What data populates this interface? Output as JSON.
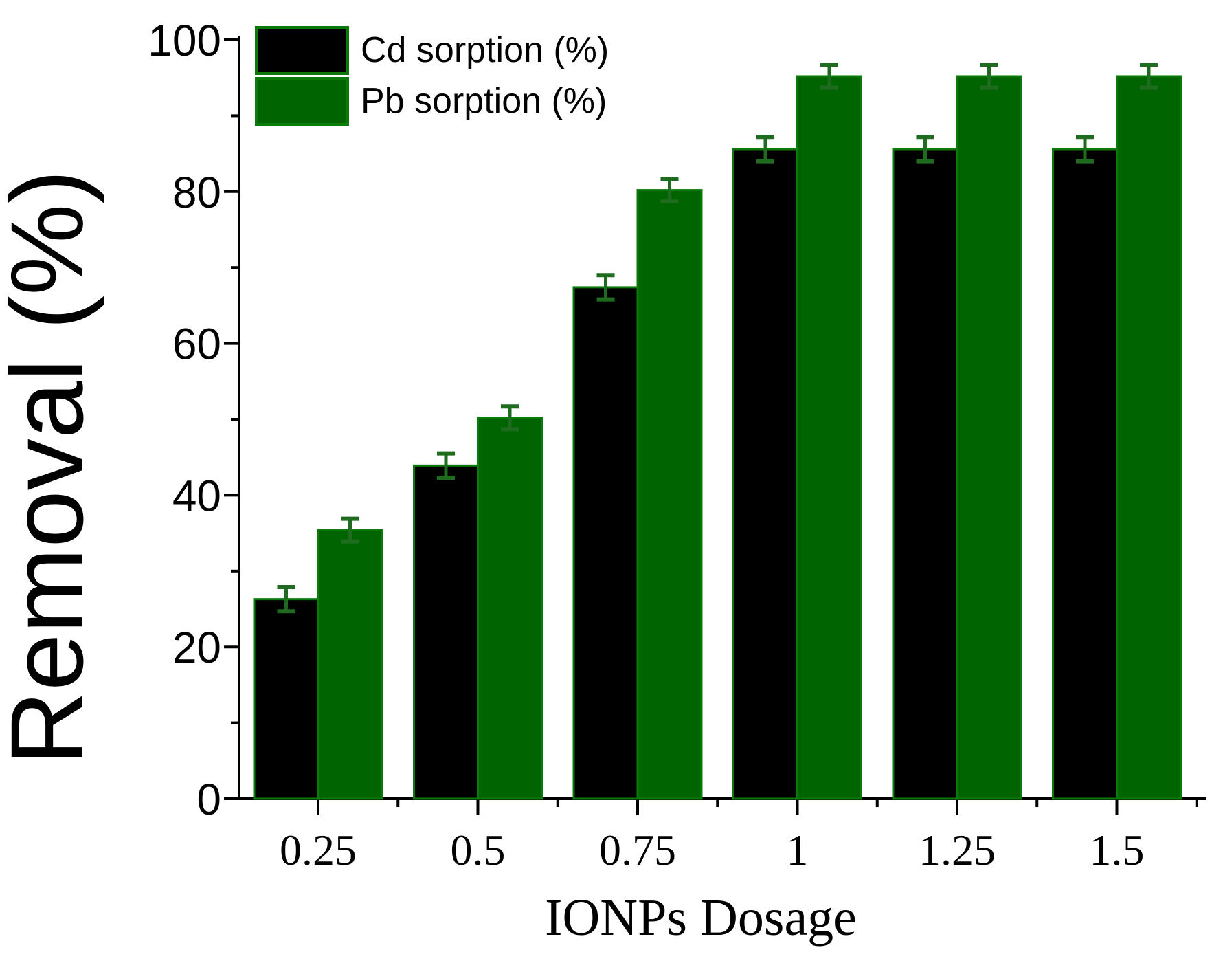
{
  "chart_data": {
    "type": "bar",
    "title": "",
    "xlabel": "IONPs Dosage",
    "ylabel": "Removal (%)",
    "categories": [
      "0.25",
      "0.5",
      "0.75",
      "1",
      "1.25",
      "1.5"
    ],
    "series": [
      {
        "name": "Cd sorption (%)",
        "color": "#000000",
        "values": [
          26.3,
          43.9,
          67.4,
          85.6,
          85.6,
          85.6
        ],
        "errors": [
          1.6,
          1.6,
          1.6,
          1.6,
          1.6,
          1.6
        ]
      },
      {
        "name": "Pb sorption (%)",
        "color": "#006400",
        "values": [
          35.4,
          50.2,
          80.2,
          95.2,
          95.2,
          95.2
        ],
        "errors": [
          1.5,
          1.5,
          1.5,
          1.5,
          1.5,
          1.5
        ]
      }
    ],
    "error_bar_color": "#1f6b1f",
    "ylim": [
      0,
      100
    ],
    "yticks": [
      0,
      20,
      40,
      60,
      80,
      100
    ],
    "yminor_step": 10,
    "legend_position": "top-left",
    "grid": false
  }
}
